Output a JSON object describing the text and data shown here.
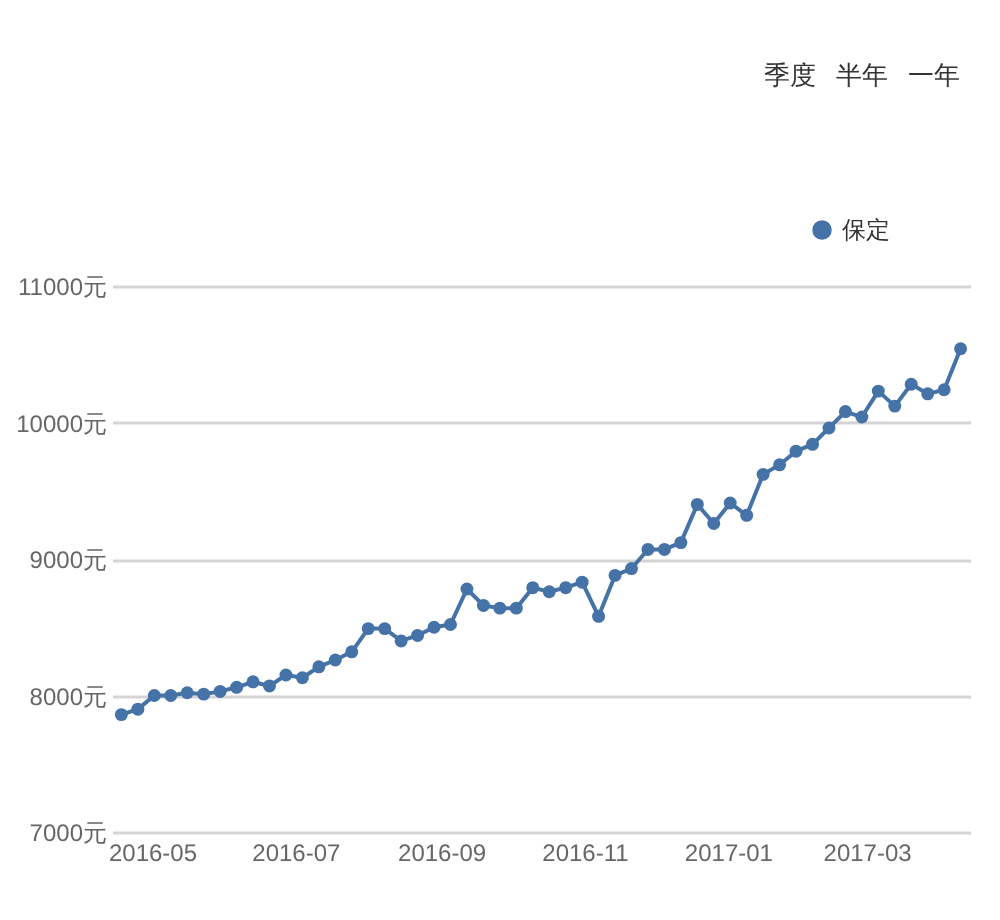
{
  "chart_data": {
    "type": "line",
    "x": [
      "2016-04-18",
      "2016-04-25",
      "2016-05-02",
      "2016-05-09",
      "2016-05-16",
      "2016-05-23",
      "2016-05-30",
      "2016-06-06",
      "2016-06-13",
      "2016-06-20",
      "2016-06-27",
      "2016-07-04",
      "2016-07-11",
      "2016-07-18",
      "2016-07-25",
      "2016-08-01",
      "2016-08-08",
      "2016-08-15",
      "2016-08-22",
      "2016-08-29",
      "2016-09-05",
      "2016-09-12",
      "2016-09-19",
      "2016-09-26",
      "2016-10-03",
      "2016-10-10",
      "2016-10-17",
      "2016-10-24",
      "2016-10-31",
      "2016-11-07",
      "2016-11-14",
      "2016-11-21",
      "2016-11-28",
      "2016-12-05",
      "2016-12-12",
      "2016-12-19",
      "2016-12-26",
      "2017-01-02",
      "2017-01-09",
      "2017-01-16",
      "2017-01-23",
      "2017-01-30",
      "2017-02-06",
      "2017-02-13",
      "2017-02-20",
      "2017-02-27",
      "2017-03-06",
      "2017-03-13",
      "2017-03-20",
      "2017-03-27",
      "2017-04-03",
      "2017-04-10"
    ],
    "series": [
      {
        "name": "保定",
        "color": "#4572a7",
        "values": [
          7860,
          7900,
          8000,
          8000,
          8020,
          8010,
          8030,
          8060,
          8100,
          8070,
          8150,
          8130,
          8210,
          8260,
          8320,
          8490,
          8490,
          8400,
          8440,
          8500,
          8520,
          8780,
          8660,
          8640,
          8640,
          8790,
          8760,
          8790,
          8830,
          8580,
          8880,
          8930,
          9070,
          9070,
          9120,
          9400,
          9260,
          9410,
          9320,
          9620,
          9690,
          9790,
          9840,
          9960,
          10080,
          10040,
          10230,
          10120,
          10280,
          10210,
          10240,
          10540
        ]
      }
    ],
    "xlim": [
      "2016-04-14",
      "2017-04-14"
    ],
    "xticks": [
      "2016-05",
      "2016-07",
      "2016-09",
      "2016-11",
      "2017-01",
      "2017-03"
    ],
    "ylim": [
      7000,
      11000
    ],
    "yticks": [
      {
        "value": 7000,
        "label": "7000元"
      },
      {
        "value": 8000,
        "label": "8000元"
      },
      {
        "value": 9000,
        "label": "9000元"
      },
      {
        "value": 10000,
        "label": "10000元"
      },
      {
        "value": 11000,
        "label": "11000元"
      }
    ],
    "grid": "y",
    "legend": "top right",
    "marker": "circle",
    "line_style": "solid",
    "annotations": [
      "季度",
      "半年",
      "一年"
    ]
  }
}
